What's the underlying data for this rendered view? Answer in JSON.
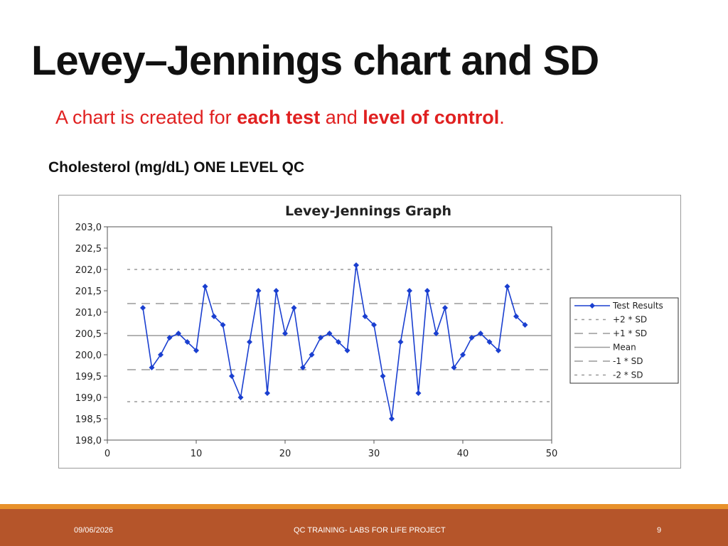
{
  "slide": {
    "title": "Levey–Jennings  chart and SD",
    "subtitle_parts": [
      "A chart is created for ",
      "each test",
      " and ",
      "level of control",
      "."
    ],
    "chart_caption": "Cholesterol  (mg/dL) ONE LEVEL QC"
  },
  "footer": {
    "date": "09/06/2026",
    "center": "QC TRAINING- LABS FOR LIFE PROJECT",
    "page": "9"
  },
  "colors": {
    "title": "#111111",
    "subtitle": "#e02020",
    "series": "#1a3fd0",
    "footer_bg": "#b5552a",
    "footer_line": "#e8912a"
  },
  "chart_data": {
    "type": "line",
    "title": "Levey-Jennings Graph",
    "xlim": [
      0,
      50
    ],
    "ylim": [
      198.0,
      203.0
    ],
    "x_ticks": [
      "0",
      "10",
      "20",
      "30",
      "40",
      "50"
    ],
    "y_ticks": [
      "198,0",
      "198,5",
      "199,0",
      "199,5",
      "200,0",
      "200,5",
      "201,0",
      "201,5",
      "202,0",
      "202,5",
      "203,0"
    ],
    "grid": false,
    "legend_position": "right",
    "series": [
      {
        "name": "Test Results",
        "x": [
          4,
          5,
          6,
          7,
          8,
          9,
          10,
          11,
          12,
          13,
          14,
          15,
          16,
          17,
          18,
          19,
          20,
          21,
          22,
          23,
          24,
          25,
          26,
          27,
          28,
          29,
          30,
          31,
          32,
          33,
          34,
          35,
          36,
          37,
          38,
          39,
          40,
          41,
          42,
          43,
          44,
          45,
          46,
          47
        ],
        "y": [
          201.1,
          199.7,
          200.0,
          200.4,
          200.5,
          200.3,
          200.1,
          201.6,
          200.9,
          200.7,
          199.5,
          199.0,
          200.3,
          201.5,
          199.1,
          201.5,
          200.5,
          201.1,
          199.7,
          200.0,
          200.4,
          200.5,
          200.3,
          200.1,
          202.1,
          200.9,
          200.7,
          199.5,
          198.5,
          200.3,
          201.5,
          199.1,
          201.5,
          200.5,
          201.1,
          199.7,
          200.0,
          200.4,
          200.5,
          200.3,
          200.1,
          201.6,
          200.9,
          200.7
        ]
      }
    ],
    "reference_lines": [
      {
        "name": "+2 * SD",
        "value": 202.0,
        "dash": "short"
      },
      {
        "name": "+1 * SD",
        "value": 201.2,
        "dash": "long"
      },
      {
        "name": "Mean",
        "value": 200.45,
        "dash": "solid"
      },
      {
        "name": "-1 * SD",
        "value": 199.65,
        "dash": "long"
      },
      {
        "name": "-2 * SD",
        "value": 198.9,
        "dash": "short"
      }
    ]
  }
}
